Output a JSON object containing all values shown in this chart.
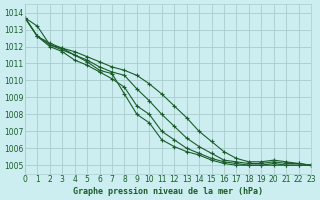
{
  "bg_color": "#cceef0",
  "grid_color": "#aacccc",
  "line_color": "#1a5c2a",
  "title": "Graphe pression niveau de la mer (hPa)",
  "xlim": [
    0,
    23
  ],
  "ylim": [
    1004.5,
    1014.5
  ],
  "yticks": [
    1005,
    1006,
    1007,
    1008,
    1009,
    1010,
    1011,
    1012,
    1013,
    1014
  ],
  "xticks": [
    0,
    1,
    2,
    3,
    4,
    5,
    6,
    7,
    8,
    9,
    10,
    11,
    12,
    13,
    14,
    15,
    16,
    17,
    18,
    19,
    20,
    21,
    22,
    23
  ],
  "series": [
    [
      1013.7,
      1013.2,
      1012.1,
      1011.9,
      1011.5,
      1011.1,
      1010.6,
      1010.4,
      1009.2,
      1008.0,
      1007.5,
      1006.5,
      1006.1,
      1005.8,
      1005.6,
      1005.3,
      1005.1,
      1005.0,
      1005.0,
      1005.0,
      1005.1,
      1005.0,
      1005.0,
      1005.0
    ],
    [
      1013.7,
      1012.6,
      1012.0,
      1011.7,
      1011.2,
      1010.9,
      1010.5,
      1010.1,
      1009.6,
      1008.5,
      1008.0,
      1007.0,
      1006.5,
      1006.0,
      1005.7,
      1005.4,
      1005.2,
      1005.1,
      1005.0,
      1005.0,
      1005.0,
      1005.0,
      1005.0,
      1005.0
    ],
    [
      1013.7,
      1012.6,
      1012.1,
      1011.8,
      1011.5,
      1011.2,
      1010.8,
      1010.5,
      1010.3,
      1009.5,
      1008.8,
      1008.0,
      1007.3,
      1006.6,
      1006.1,
      1005.7,
      1005.3,
      1005.2,
      1005.1,
      1005.1,
      1005.2,
      1005.1,
      1005.1,
      1005.0
    ],
    [
      1013.7,
      1012.6,
      1012.2,
      1011.9,
      1011.7,
      1011.4,
      1011.1,
      1010.8,
      1010.6,
      1010.3,
      1009.8,
      1009.2,
      1008.5,
      1007.8,
      1007.0,
      1006.4,
      1005.8,
      1005.4,
      1005.2,
      1005.2,
      1005.3,
      1005.2,
      1005.1,
      1005.0
    ]
  ]
}
